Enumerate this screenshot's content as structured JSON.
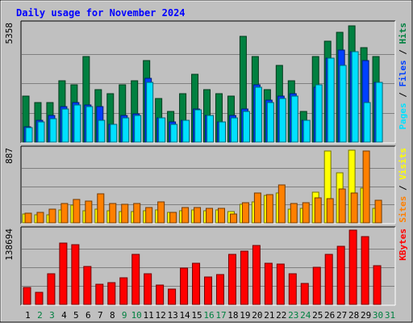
{
  "chart_data": {
    "type": "bar",
    "title": "Daily usage for November 2024",
    "colors": {
      "title": "#0000ff",
      "background": "#c0c0c0",
      "hits": "#008040",
      "files": "#0040ff",
      "pages": "#00e0ff",
      "visits": "#ffff00",
      "sites": "#ff8000",
      "kbytes": "#ff0000",
      "weekend_label": "#008040",
      "weekday_label": "#000000"
    },
    "days": [
      "1",
      "2",
      "3",
      "4",
      "5",
      "6",
      "7",
      "8",
      "9",
      "10",
      "11",
      "12",
      "13",
      "14",
      "15",
      "16",
      "17",
      "18",
      "19",
      "20",
      "21",
      "22",
      "23",
      "24",
      "25",
      "26",
      "27",
      "28",
      "29",
      "30",
      "31"
    ],
    "weekend_days": [
      2,
      3,
      9,
      10,
      16,
      17,
      23,
      24,
      30,
      31
    ],
    "panels": [
      {
        "name": "hits-files-pages",
        "axis_max_label": "5358",
        "ymax": 5358,
        "right_labels": [
          {
            "text": "Pages",
            "color": "#00e0ff"
          },
          {
            "text": " / ",
            "color": "#000000"
          },
          {
            "text": "Files",
            "color": "#0040ff"
          },
          {
            "text": " / ",
            "color": "#000000"
          },
          {
            "text": "Hits",
            "color": "#008040"
          }
        ],
        "series": [
          {
            "key": "hits",
            "values": [
              2100,
              1800,
              1800,
              2800,
              2600,
              3900,
              2400,
              2200,
              2600,
              2800,
              3700,
              2000,
              1400,
              2200,
              3100,
              2400,
              2200,
              2100,
              4800,
              3900,
              2400,
              3500,
              2800,
              1400,
              3900,
              4600,
              5000,
              5300,
              4300,
              3900,
              0
            ]
          },
          {
            "key": "files",
            "values": [
              700,
              1000,
              1200,
              1600,
              1800,
              1700,
              1600,
              800,
              1200,
              1300,
              2900,
              1100,
              900,
              1000,
              1500,
              1200,
              900,
              1200,
              1500,
              2600,
              1900,
              2100,
              2200,
              1000,
              2500,
              3800,
              4200,
              4100,
              3700,
              2700,
              0
            ]
          },
          {
            "key": "pages",
            "values": [
              650,
              900,
              1050,
              1500,
              1700,
              1600,
              1000,
              800,
              1100,
              1200,
              2700,
              1100,
              800,
              1000,
              1450,
              1200,
              900,
              1100,
              1400,
              2500,
              1800,
              2000,
              2100,
              1000,
              2600,
              3800,
              3500,
              4100,
              1800,
              2700,
              0
            ]
          }
        ]
      },
      {
        "name": "visits-sites",
        "axis_max_label": "887",
        "ymax": 887,
        "right_labels": [
          {
            "text": "Sites",
            "color": "#ff8000"
          },
          {
            "text": " / ",
            "color": "#000000"
          },
          {
            "text": "Visits",
            "color": "#ffff00"
          }
        ],
        "series": [
          {
            "key": "visits",
            "values": [
              110,
              100,
              100,
              160,
              210,
              150,
              170,
              150,
              140,
              140,
              150,
              160,
              130,
              150,
              160,
              150,
              160,
              140,
              220,
              250,
              330,
              360,
              170,
              180,
              370,
              870,
              600,
              880,
              420,
              180,
              0
            ]
          },
          {
            "key": "sites",
            "values": [
              120,
              130,
              170,
              230,
              280,
              260,
              350,
              230,
              220,
              230,
              190,
              250,
              130,
              190,
              190,
              180,
              180,
              110,
              240,
              360,
              340,
              460,
              230,
              240,
              300,
              290,
              410,
              360,
              870,
              270,
              0
            ]
          }
        ]
      },
      {
        "name": "kbytes",
        "axis_max_label": "138694",
        "ymax": 138694,
        "right_labels": [
          {
            "text": "KBytes",
            "color": "#ff0000"
          }
        ],
        "series": [
          {
            "key": "kbytes",
            "values": [
              32000,
              22000,
              57000,
              114000,
              111000,
              71000,
              37000,
              40000,
              50000,
              93000,
              58000,
              36000,
              29000,
              68000,
              77000,
              52000,
              56000,
              94000,
              99000,
              110000,
              77000,
              75000,
              58000,
              39000,
              69000,
              94000,
              109000,
              138000,
              127000,
              73000,
              0
            ]
          }
        ]
      }
    ]
  }
}
